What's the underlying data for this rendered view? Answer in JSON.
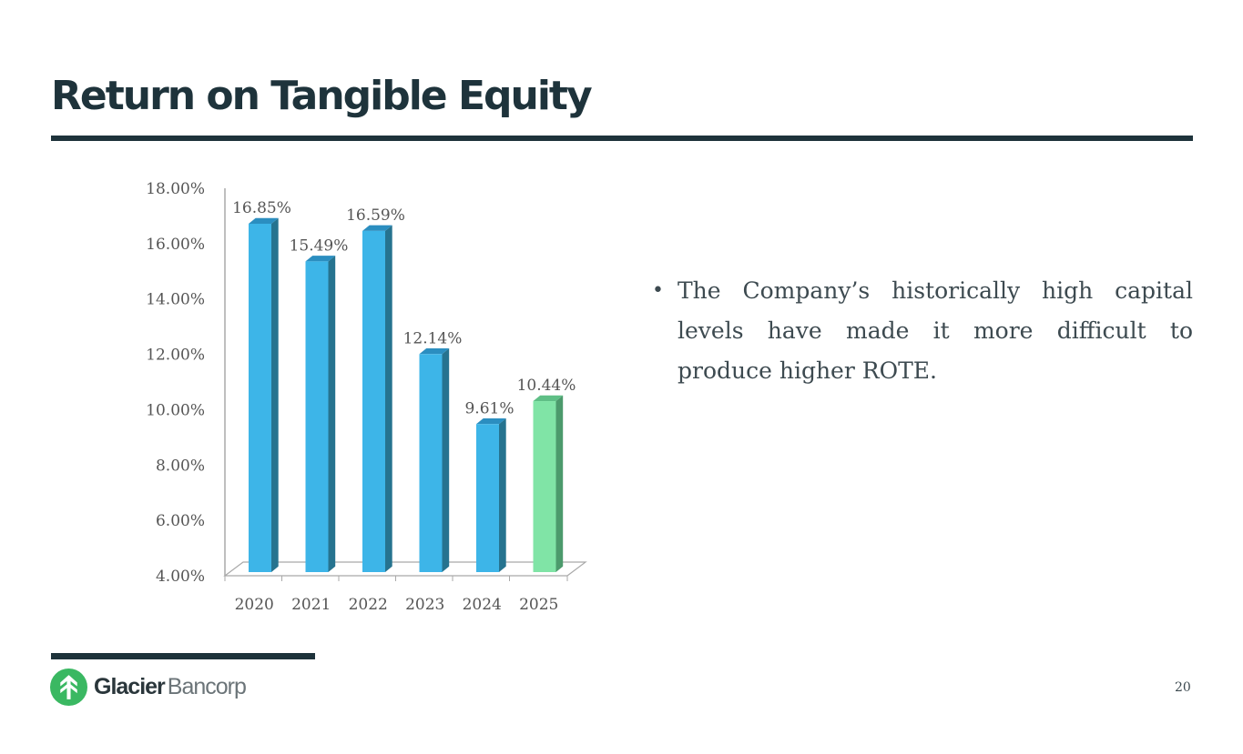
{
  "slide": {
    "title": "Return on Tangible Equity",
    "bullets": [
      "The Company’s historically high capital levels have made it more difficult to produce higher ROTE."
    ],
    "page_number": "20",
    "logo": {
      "name_bold": "Glacier",
      "name_light": "Bancorp",
      "icon": "glacier-tree-logo-icon"
    }
  },
  "colors": {
    "title": "#1e333b",
    "bar_blue_front": "#3db5e8",
    "bar_blue_side": "#26738f",
    "bar_blue_top": "#2b8ec0",
    "bar_green_front": "#80e4a6",
    "bar_green_side": "#4c9a6c",
    "bar_green_top": "#5fbf86",
    "logo_green": "#3ab862"
  },
  "chart_data": {
    "type": "bar",
    "title": "",
    "xlabel": "",
    "ylabel": "",
    "categories": [
      "2020",
      "2021",
      "2022",
      "2023",
      "2024",
      "2025"
    ],
    "values": [
      16.85,
      15.49,
      16.59,
      12.14,
      9.61,
      10.44
    ],
    "data_labels": [
      "16.85%",
      "15.49%",
      "16.59%",
      "12.14%",
      "9.61%",
      "10.44%"
    ],
    "highlight_index": 5,
    "ylim": [
      4,
      18
    ],
    "yticks": [
      4,
      6,
      8,
      10,
      12,
      14,
      16,
      18
    ],
    "ytick_labels": [
      "4.00%",
      "6.00%",
      "8.00%",
      "10.00%",
      "12.00%",
      "14.00%",
      "16.00%",
      "18.00%"
    ],
    "grid": false,
    "legend": "none",
    "style": "3d-column"
  }
}
